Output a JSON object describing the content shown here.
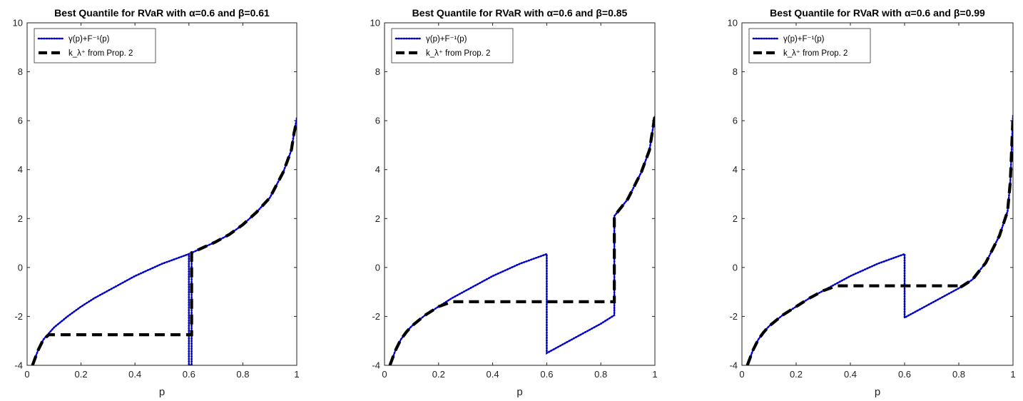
{
  "figure": {
    "charts": [
      {
        "title_html": "Best Quantile for RVaR with α=0.6 and β=0.61"
      },
      {
        "title_html": "Best Quantile for RVaR with α=0.6 and β=0.85"
      },
      {
        "title_html": "Best Quantile for RVaR with α=0.6 and β=0.99"
      }
    ]
  },
  "colors": {
    "series_gamma": "#0000cc",
    "series_k": "#000000",
    "axis": "#222222"
  },
  "chart_data": [
    {
      "type": "line",
      "title": "Best Quantile for RVaR with α=0.6 and β=0.61",
      "xlabel": "p",
      "ylabel": "",
      "xlim": [
        0,
        1
      ],
      "ylim": [
        -4,
        10
      ],
      "xticks": [
        "0",
        "0.2",
        "0.4",
        "0.6",
        "0.8",
        "1"
      ],
      "yticks": [
        "-4",
        "-2",
        "0",
        "2",
        "4",
        "6",
        "8",
        "10"
      ],
      "legend": {
        "placement": "top-left",
        "entries": [
          "γ(p)+F⁻¹(p)",
          "k_λ⁺ from Prop. 2"
        ]
      },
      "alpha": 0.6,
      "beta": 0.61,
      "series": [
        {
          "name": "γ(p)+F⁻¹(p)",
          "style": "dotted",
          "x": [
            0.02,
            0.04,
            0.06,
            0.08,
            0.1,
            0.15,
            0.2,
            0.25,
            0.3,
            0.35,
            0.4,
            0.45,
            0.5,
            0.55,
            0.6,
            0.6,
            0.601,
            0.601,
            0.61,
            0.61,
            0.65,
            0.7,
            0.75,
            0.8,
            0.85,
            0.9,
            0.95,
            0.98,
            0.99,
            1.0
          ],
          "y": [
            -4.0,
            -3.4,
            -2.95,
            -2.7,
            -2.45,
            -2.0,
            -1.6,
            -1.25,
            -0.95,
            -0.65,
            -0.35,
            -0.1,
            0.15,
            0.35,
            0.55,
            -4.0,
            -4.0,
            -4.0,
            -4.0,
            0.6,
            0.8,
            1.05,
            1.35,
            1.75,
            2.25,
            2.85,
            3.9,
            4.8,
            5.5,
            6.1
          ]
        },
        {
          "name": "k_λ⁺ from Prop. 2",
          "style": "dashed",
          "x": [
            0.02,
            0.04,
            0.06,
            0.08,
            0.1,
            0.6,
            0.61,
            0.61,
            0.65,
            0.7,
            0.75,
            0.8,
            0.85,
            0.9,
            0.95,
            0.98,
            0.99,
            1.0
          ],
          "y": [
            -4.0,
            -3.4,
            -2.95,
            -2.75,
            -2.75,
            -2.75,
            -2.75,
            0.6,
            0.8,
            1.05,
            1.35,
            1.75,
            2.25,
            2.85,
            3.9,
            4.8,
            5.5,
            6.0
          ]
        }
      ]
    },
    {
      "type": "line",
      "title": "Best Quantile for RVaR with α=0.6 and β=0.85",
      "xlabel": "p",
      "ylabel": "",
      "xlim": [
        0,
        1
      ],
      "ylim": [
        -4,
        10
      ],
      "xticks": [
        "0",
        "0.2",
        "0.4",
        "0.6",
        "0.8",
        "1"
      ],
      "yticks": [
        "-4",
        "-2",
        "0",
        "2",
        "4",
        "6",
        "8",
        "10"
      ],
      "legend": {
        "placement": "top-left",
        "entries": [
          "γ(p)+F⁻¹(p)",
          "k_λ⁺ from Prop. 2"
        ]
      },
      "alpha": 0.6,
      "beta": 0.85,
      "series": [
        {
          "name": "γ(p)+F⁻¹(p)",
          "style": "dotted",
          "x": [
            0.02,
            0.04,
            0.06,
            0.08,
            0.1,
            0.15,
            0.2,
            0.25,
            0.3,
            0.35,
            0.4,
            0.45,
            0.5,
            0.55,
            0.6,
            0.6,
            0.65,
            0.7,
            0.75,
            0.8,
            0.85,
            0.85,
            0.9,
            0.95,
            0.98,
            0.99,
            1.0
          ],
          "y": [
            -4.0,
            -3.4,
            -2.95,
            -2.65,
            -2.4,
            -1.95,
            -1.6,
            -1.25,
            -0.95,
            -0.65,
            -0.35,
            -0.1,
            0.15,
            0.35,
            0.55,
            -3.5,
            -3.2,
            -2.9,
            -2.6,
            -2.3,
            -1.95,
            2.1,
            2.8,
            3.9,
            4.8,
            5.5,
            6.2
          ]
        },
        {
          "name": "k_λ⁺ from Prop. 2",
          "style": "dashed",
          "x": [
            0.02,
            0.04,
            0.06,
            0.08,
            0.1,
            0.15,
            0.2,
            0.25,
            0.6,
            0.85,
            0.85,
            0.9,
            0.95,
            0.98,
            0.99,
            1.0
          ],
          "y": [
            -4.0,
            -3.4,
            -2.95,
            -2.65,
            -2.4,
            -1.95,
            -1.6,
            -1.4,
            -1.4,
            -1.4,
            2.1,
            2.8,
            3.9,
            4.8,
            5.5,
            6.2
          ]
        }
      ]
    },
    {
      "type": "line",
      "title": "Best Quantile for RVaR with α=0.6 and β=0.99",
      "xlabel": "p",
      "ylabel": "",
      "xlim": [
        0,
        1
      ],
      "ylim": [
        -4,
        10
      ],
      "xticks": [
        "0",
        "0.2",
        "0.4",
        "0.6",
        "0.8",
        "1"
      ],
      "yticks": [
        "-4",
        "-2",
        "0",
        "2",
        "4",
        "6",
        "8",
        "10"
      ],
      "legend": {
        "placement": "top-left",
        "entries": [
          "γ(p)+F⁻¹(p)",
          "k_λ⁺ from Prop. 2"
        ]
      },
      "alpha": 0.6,
      "beta": 0.99,
      "series": [
        {
          "name": "γ(p)+F⁻¹(p)",
          "style": "dotted",
          "x": [
            0.02,
            0.04,
            0.06,
            0.08,
            0.1,
            0.15,
            0.2,
            0.25,
            0.3,
            0.35,
            0.4,
            0.45,
            0.5,
            0.55,
            0.6,
            0.6,
            0.65,
            0.7,
            0.75,
            0.8,
            0.85,
            0.9,
            0.95,
            0.98,
            0.99,
            1.0
          ],
          "y": [
            -4.0,
            -3.4,
            -2.95,
            -2.65,
            -2.4,
            -1.95,
            -1.6,
            -1.25,
            -0.95,
            -0.65,
            -0.35,
            -0.1,
            0.15,
            0.35,
            0.55,
            -2.05,
            -1.75,
            -1.45,
            -1.15,
            -0.85,
            -0.5,
            0.2,
            1.3,
            2.3,
            3.5,
            6.2
          ]
        },
        {
          "name": "k_λ⁺ from Prop. 2",
          "style": "dashed",
          "x": [
            0.02,
            0.04,
            0.06,
            0.08,
            0.1,
            0.15,
            0.2,
            0.25,
            0.3,
            0.35,
            0.6,
            0.8,
            0.8,
            0.85,
            0.9,
            0.95,
            0.98,
            0.99,
            1.0
          ],
          "y": [
            -4.0,
            -3.4,
            -2.95,
            -2.65,
            -2.4,
            -1.95,
            -1.6,
            -1.25,
            -0.95,
            -0.75,
            -0.75,
            -0.75,
            -0.85,
            -0.5,
            0.2,
            1.3,
            2.3,
            3.5,
            6.2
          ]
        }
      ]
    }
  ]
}
